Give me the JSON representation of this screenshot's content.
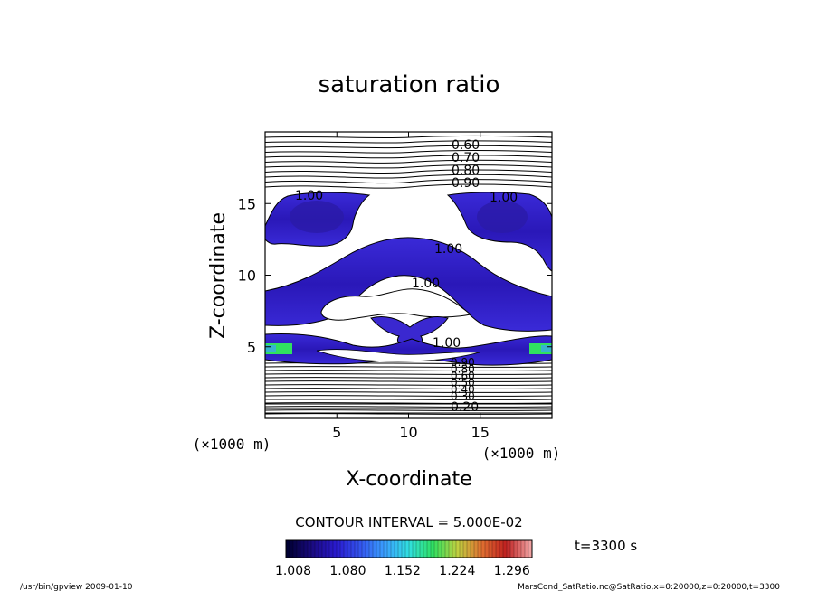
{
  "chart_data": {
    "type": "heatmap",
    "title": "saturation ratio",
    "xlabel": "X-coordinate",
    "ylabel": "Z-coordinate",
    "x_unit": "(×1000 m)",
    "z_unit": "(×1000 m)",
    "xlim": [
      0,
      20
    ],
    "ylim": [
      0,
      20
    ],
    "x_ticks": [
      5,
      10,
      15
    ],
    "y_ticks": [
      5,
      10,
      15
    ],
    "contour_interval_text": "CONTOUR INTERVAL = 5.000E-02",
    "time_text": "t=3300 s",
    "colorbar": {
      "range": [
        1.008,
        1.332
      ],
      "tick_labels": [
        "1.008",
        "1.080",
        "1.152",
        "1.224",
        "1.296"
      ],
      "colors": [
        "#000033",
        "#1a0a80",
        "#2a1ad0",
        "#3355ee",
        "#3aa0ff",
        "#30e0e0",
        "#30e060",
        "#c0d040",
        "#e07030",
        "#c02020",
        "#f0a0a0"
      ]
    },
    "contour_labels_top": [
      "0.60",
      "0.70",
      "0.80",
      "0.90"
    ],
    "contour_labels_one": [
      "1.00",
      "1.00",
      "1.00",
      "1.00",
      "1.00"
    ],
    "contour_labels_bottom": [
      "0.90",
      "0.80",
      "0.60",
      "0.50",
      "0.40",
      "0.30",
      "0.20"
    ]
  },
  "footer": {
    "left": "/usr/bin/gpview   2009-01-10",
    "right": "MarsCond_SatRatio.nc@SatRatio,x=0:20000,z=0:20000,t=3300"
  }
}
